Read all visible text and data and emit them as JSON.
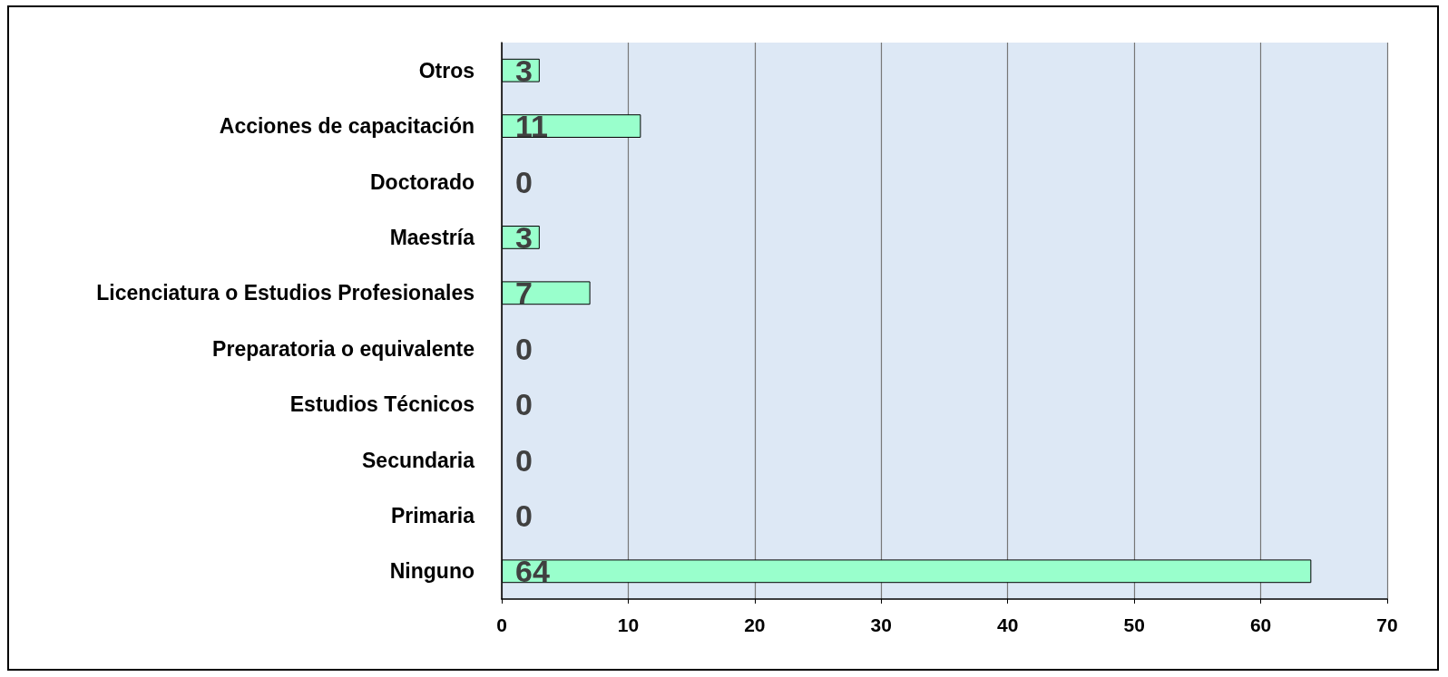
{
  "chart_data": {
    "type": "bar",
    "orientation": "horizontal",
    "categories": [
      "Otros",
      "Acciones de capacitación",
      "Doctorado",
      "Maestría",
      "Licenciatura o Estudios Profesionales",
      "Preparatoria o equivalente",
      "Estudios Técnicos",
      "Secundaria",
      "Primaria",
      "Ninguno"
    ],
    "values": [
      3,
      11,
      0,
      3,
      7,
      0,
      0,
      0,
      0,
      64
    ],
    "color": "#99ffcc",
    "xlim": [
      0,
      70
    ],
    "xticks": [
      0,
      10,
      20,
      30,
      40,
      50,
      60,
      70
    ],
    "grid": "x",
    "data_labels": true
  }
}
